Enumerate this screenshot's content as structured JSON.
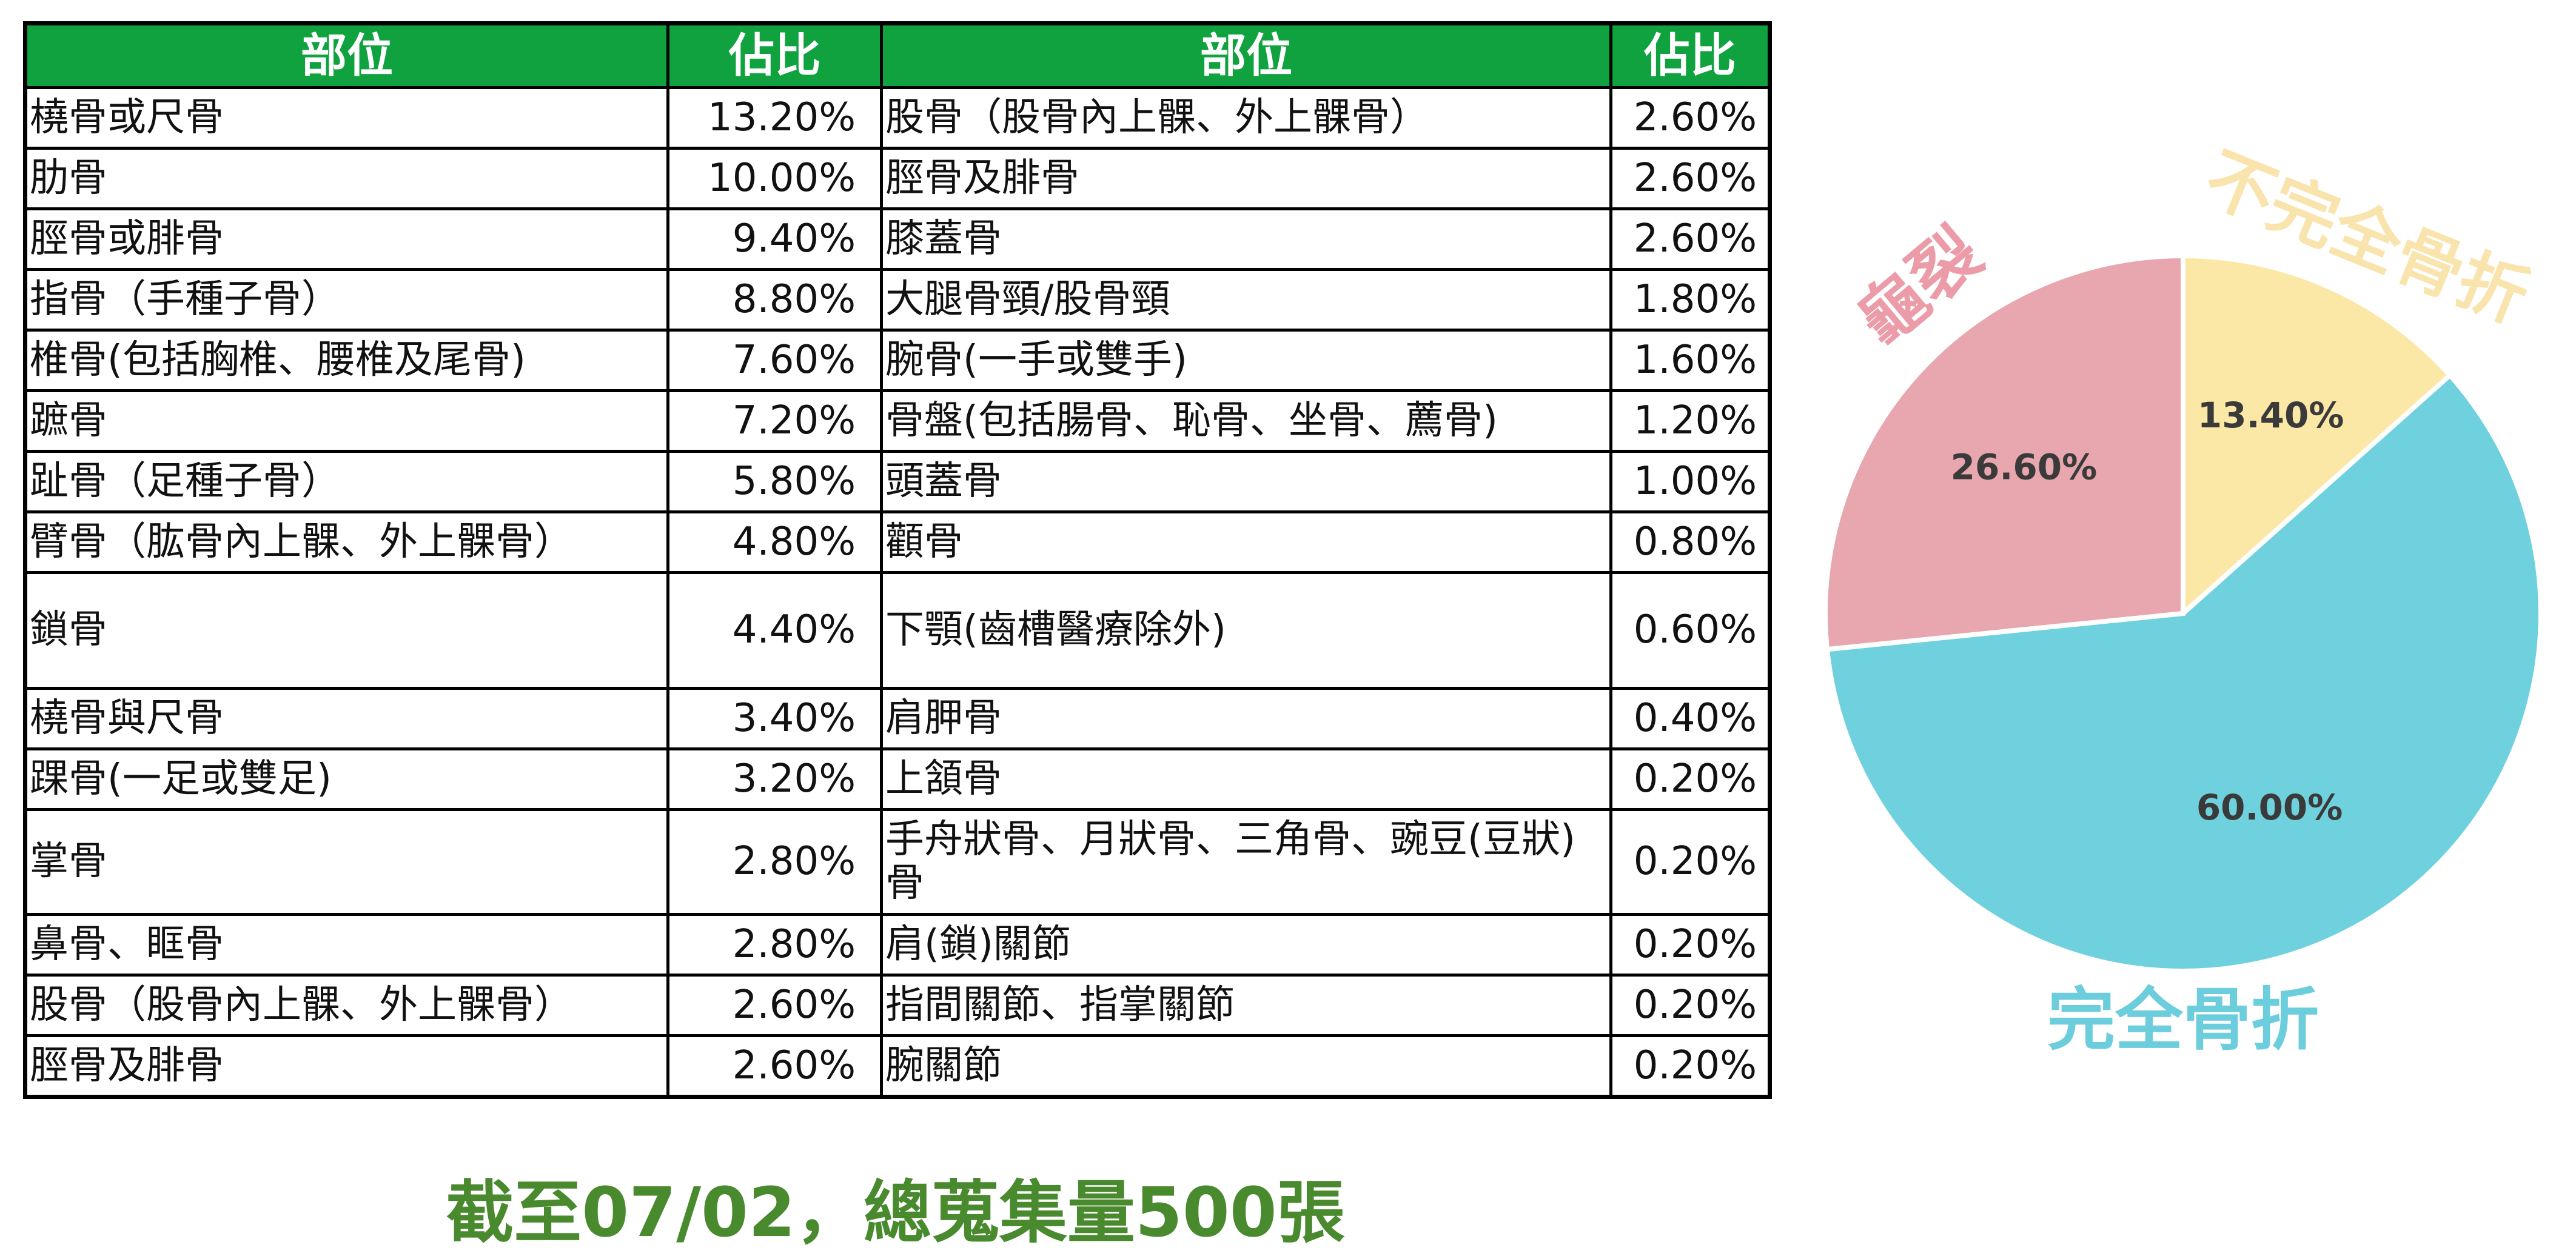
{
  "table": {
    "headers": [
      "部位",
      "佔比",
      "部位",
      "佔比"
    ],
    "rows": [
      [
        "橈骨或尺骨",
        "13.20%",
        "股骨（股骨內上髁、外上髁骨）",
        "2.60%"
      ],
      [
        "肋骨",
        "10.00%",
        "脛骨及腓骨",
        "2.60%"
      ],
      [
        "脛骨或腓骨",
        "9.40%",
        "膝蓋骨",
        "2.60%"
      ],
      [
        "指骨（手種子骨）",
        "8.80%",
        "大腿骨頸/股骨頸",
        "1.80%"
      ],
      [
        "椎骨(包括胸椎、腰椎及尾骨)",
        "7.60%",
        "腕骨(一手或雙手)",
        "1.60%"
      ],
      [
        "蹠骨",
        "7.20%",
        "骨盤(包括腸骨、恥骨、坐骨、薦骨)",
        "1.20%"
      ],
      [
        "趾骨（足種子骨）",
        "5.80%",
        "頭蓋骨",
        "1.00%"
      ],
      [
        "臂骨（肱骨內上髁、外上髁骨）",
        "4.80%",
        "顴骨",
        "0.80%"
      ],
      [
        "鎖骨",
        "4.40%",
        "下顎(齒槽醫療除外)",
        "0.60%"
      ],
      [
        "橈骨與尺骨",
        "3.40%",
        "肩胛骨",
        "0.40%"
      ],
      [
        "踝骨(一足或雙足)",
        "3.20%",
        "上頷骨",
        "0.20%"
      ],
      [
        "掌骨",
        "2.80%",
        "手舟狀骨、月狀骨、三角骨、豌豆(豆狀)骨",
        "0.20%"
      ],
      [
        "鼻骨、眶骨",
        "2.80%",
        "肩(鎖)關節",
        "0.20%"
      ],
      [
        "股骨（股骨內上髁、外上髁骨）",
        "2.60%",
        "指間關節、指掌關節",
        "0.20%"
      ],
      [
        "脛骨及腓骨",
        "2.60%",
        "腕關節",
        "0.20%"
      ]
    ]
  },
  "footnote": "截至07/02，總蒐集量500張",
  "chart_data": {
    "type": "pie",
    "slices": [
      {
        "label": "不完全骨折",
        "value": 13.4,
        "value_label": "13.40%",
        "color": "#fbe8a6",
        "label_color": "#f9e4ad"
      },
      {
        "label": "完全骨折",
        "value": 60.0,
        "value_label": "60.00%",
        "color": "#6fd1de",
        "label_color": "#6ccddd"
      },
      {
        "label": "龜裂",
        "value": 26.6,
        "value_label": "26.60%",
        "color": "#e8a6ae",
        "label_color": "#ec9ca8"
      }
    ],
    "start": "12 o'clock",
    "direction": "clockwise",
    "colors": {
      "header_bg": "#0fa23f",
      "footnote": "#4a8a2e"
    }
  }
}
